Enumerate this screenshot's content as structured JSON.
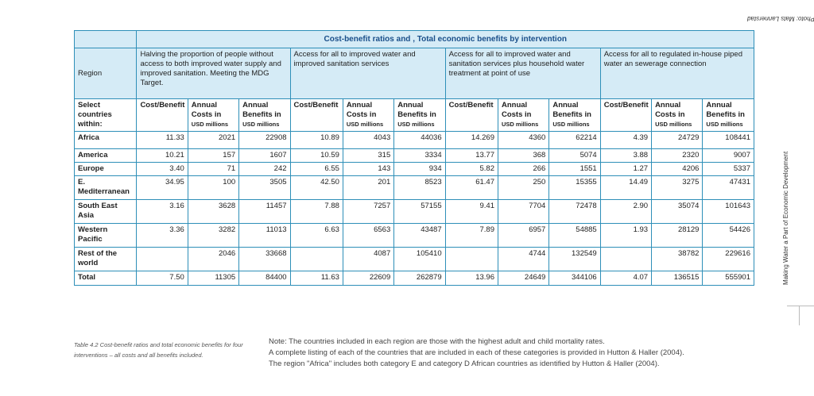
{
  "photo_note": "Photo: Mats Lannerstad",
  "side_caption": "Making Water a Part of Economic Development",
  "table": {
    "title": "Cost-benefit ratios and , Total economic benefits by intervention",
    "region_header": "Region",
    "interventions": [
      "Halving the proportion of people without access to both improved water supply and improved sanitation. Meeting the MDG Target.",
      "Access for all to improved water and improved sanitation services",
      "Access for all to improved water and sanitation services plus household water treatment at point of use",
      "Access for all to regulated in-house piped water an sewerage connection"
    ],
    "select_label": "Select countries within:",
    "col_cb": "Cost/Benefit",
    "col_costs": "Annual Costs in",
    "col_benefits": "Annual Benefits in",
    "usd": "USD millions",
    "rows": [
      {
        "region": "Africa",
        "v": [
          "11.33",
          "2021",
          "22908",
          "10.89",
          "4043",
          "44036",
          "14.269",
          "4360",
          "62214",
          "4.39",
          "24729",
          "108441"
        ]
      },
      {
        "region": "America",
        "v": [
          "10.21",
          "157",
          "1607",
          "10.59",
          "315",
          "3334",
          "13.77",
          "368",
          "5074",
          "3.88",
          "2320",
          "9007"
        ]
      },
      {
        "region": "Europe",
        "v": [
          "3.40",
          "71",
          "242",
          "6.55",
          "143",
          "934",
          "5.82",
          "266",
          "1551",
          "1.27",
          "4206",
          "5337"
        ]
      },
      {
        "region": "E. Mediterranean",
        "v": [
          "34.95",
          "100",
          "3505",
          "42.50",
          "201",
          "8523",
          "61.47",
          "250",
          "15355",
          "14.49",
          "3275",
          "47431"
        ]
      },
      {
        "region": "South East Asia",
        "v": [
          "3.16",
          "3628",
          "11457",
          "7.88",
          "7257",
          "57155",
          "9.41",
          "7704",
          "72478",
          "2.90",
          "35074",
          "101643"
        ]
      },
      {
        "region": "Western Pacific",
        "v": [
          "3.36",
          "3282",
          "11013",
          "6.63",
          "6563",
          "43487",
          "7.89",
          "6957",
          "54885",
          "1.93",
          "28129",
          "54426"
        ]
      },
      {
        "region": "Rest of the world",
        "v": [
          "",
          "2046",
          "33668",
          "",
          "4087",
          "105410",
          "",
          "4744",
          "132549",
          "",
          "38782",
          "229616"
        ]
      },
      {
        "region": "Total",
        "v": [
          "7.50",
          "11305",
          "84400",
          "11.63",
          "22609",
          "262879",
          "13.96",
          "24649",
          "344106",
          "4.07",
          "136515",
          "555901"
        ]
      }
    ]
  },
  "caption": "Table 4.2 Cost-benefit ratios and total economic benefits for four interventions – all costs and all benefits included.",
  "notes": [
    "Note: The countries included in each region are those with the highest adult and child mortality rates.",
    "A complete listing of each of the countries that are included in each of these categories is provided in Hutton & Haller (2004).",
    "The region \"Africa\" includes both category E and category D African countries as identified by Hutton & Haller (2004)."
  ]
}
